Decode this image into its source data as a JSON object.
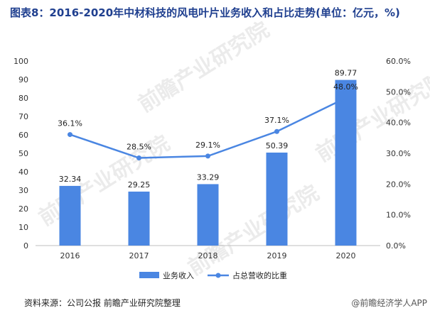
{
  "title": "图表8：2016-2020年中材科技的风电叶片业务收入和占比走势(单位：亿元，%)",
  "source": "资料来源：公司公报 前瞻产业研究院整理",
  "watermark_text": "前瞻产业研究院",
  "watermark_corner": "@前瞻经济学人APP",
  "chart_data": {
    "type": "bar",
    "categories": [
      "2016",
      "2017",
      "2018",
      "2019",
      "2020"
    ],
    "series": [
      {
        "name": "业务收入",
        "type": "bar",
        "axis": "left",
        "values": [
          32.34,
          29.25,
          33.29,
          50.39,
          89.77
        ],
        "labels": [
          "32.34",
          "29.25",
          "33.29",
          "50.39",
          "89.77"
        ],
        "color": "#4a86e2"
      },
      {
        "name": "占总营收的比重",
        "type": "line",
        "axis": "right",
        "values": [
          36.1,
          28.5,
          29.1,
          37.1,
          48.0
        ],
        "labels": [
          "36.1%",
          "28.5%",
          "29.1%",
          "37.1%",
          "48.0%"
        ],
        "color": "#4a86e2"
      }
    ],
    "y_left": {
      "min": 0,
      "max": 100,
      "step": 10,
      "ticks": [
        "0",
        "10",
        "20",
        "30",
        "40",
        "50",
        "60",
        "70",
        "80",
        "90",
        "100"
      ]
    },
    "y_right": {
      "min": 0,
      "max": 60,
      "step": 10,
      "ticks": [
        "0.0%",
        "10.0%",
        "20.0%",
        "30.0%",
        "40.0%",
        "50.0%",
        "60.0%"
      ]
    },
    "grid": false,
    "legend_position": "bottom-center"
  }
}
